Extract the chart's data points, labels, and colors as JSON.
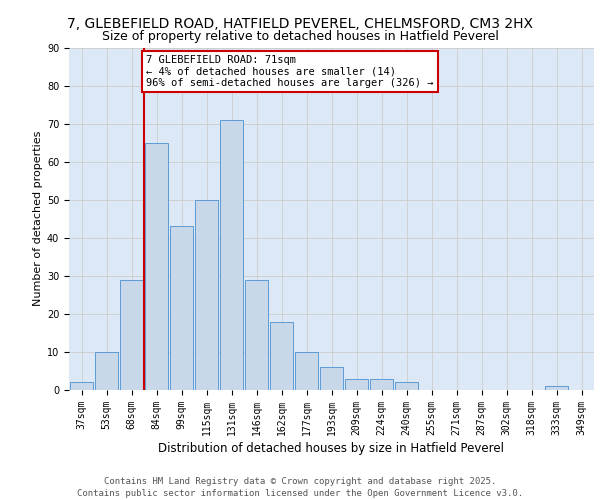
{
  "title1": "7, GLEBEFIELD ROAD, HATFIELD PEVEREL, CHELMSFORD, CM3 2HX",
  "title2": "Size of property relative to detached houses in Hatfield Peverel",
  "xlabel": "Distribution of detached houses by size in Hatfield Peverel",
  "ylabel": "Number of detached properties",
  "categories": [
    "37sqm",
    "53sqm",
    "68sqm",
    "84sqm",
    "99sqm",
    "115sqm",
    "131sqm",
    "146sqm",
    "162sqm",
    "177sqm",
    "193sqm",
    "209sqm",
    "224sqm",
    "240sqm",
    "255sqm",
    "271sqm",
    "287sqm",
    "302sqm",
    "318sqm",
    "333sqm",
    "349sqm"
  ],
  "values": [
    2,
    10,
    29,
    65,
    43,
    50,
    71,
    29,
    18,
    10,
    6,
    3,
    3,
    2,
    0,
    0,
    0,
    0,
    0,
    1,
    0
  ],
  "bar_color": "#c8d8e8",
  "bar_edge_color": "#5b9bd5",
  "annotation_text": "7 GLEBEFIELD ROAD: 71sqm\n← 4% of detached houses are smaller (14)\n96% of semi-detached houses are larger (326) →",
  "annotation_box_color": "#ffffff",
  "annotation_box_edge": "#cc0000",
  "vline_x_index": 2.5,
  "vline_color": "#cc0000",
  "ylim": [
    0,
    90
  ],
  "yticks": [
    0,
    10,
    20,
    30,
    40,
    50,
    60,
    70,
    80,
    90
  ],
  "grid_color": "#cccccc",
  "bg_color": "#dce8f5",
  "footer": "Contains HM Land Registry data © Crown copyright and database right 2025.\nContains public sector information licensed under the Open Government Licence v3.0.",
  "title1_fontsize": 10,
  "title2_fontsize": 9,
  "xlabel_fontsize": 8.5,
  "ylabel_fontsize": 8,
  "tick_fontsize": 7,
  "annotation_fontsize": 7.5,
  "footer_fontsize": 6.5
}
